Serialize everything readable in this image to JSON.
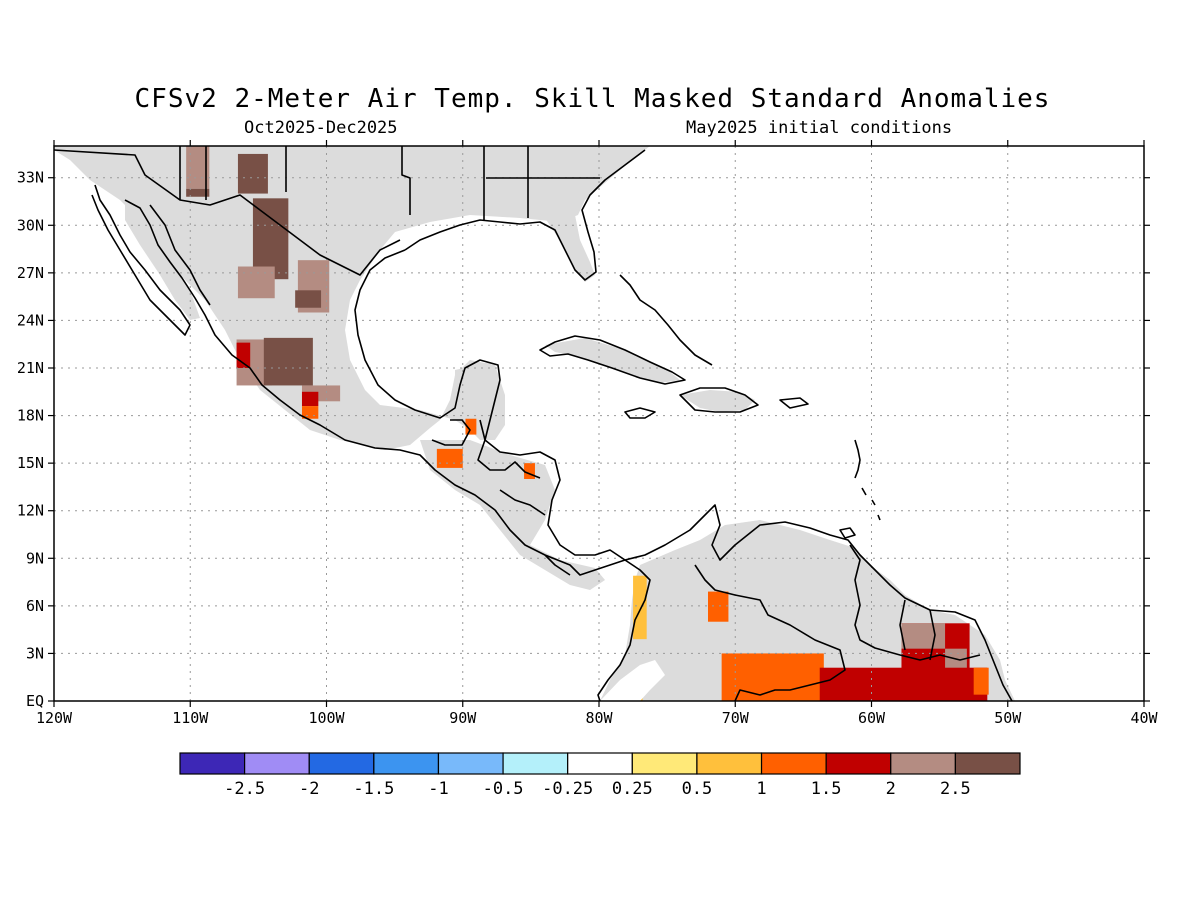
{
  "title": "CFSv2 2-Meter Air Temp. Skill Masked Standard Anomalies",
  "period": "Oct2025-Dec2025",
  "init": "May2025 initial conditions",
  "map": {
    "lon_range": [
      -120,
      -40
    ],
    "lat_range": [
      0,
      35
    ],
    "lon_ticks": [
      {
        "v": -120,
        "label": "120W"
      },
      {
        "v": -110,
        "label": "110W"
      },
      {
        "v": -100,
        "label": "100W"
      },
      {
        "v": -90,
        "label": "90W"
      },
      {
        "v": -80,
        "label": "80W"
      },
      {
        "v": -70,
        "label": "70W"
      },
      {
        "v": -60,
        "label": "60W"
      },
      {
        "v": -50,
        "label": "50W"
      },
      {
        "v": -40,
        "label": "40W"
      }
    ],
    "lat_ticks": [
      {
        "v": 0,
        "label": "EQ"
      },
      {
        "v": 3,
        "label": "3N"
      },
      {
        "v": 6,
        "label": "6N"
      },
      {
        "v": 9,
        "label": "9N"
      },
      {
        "v": 12,
        "label": "12N"
      },
      {
        "v": 15,
        "label": "15N"
      },
      {
        "v": 18,
        "label": "18N"
      },
      {
        "v": 21,
        "label": "21N"
      },
      {
        "v": 24,
        "label": "24N"
      },
      {
        "v": 27,
        "label": "27N"
      },
      {
        "v": 30,
        "label": "30N"
      },
      {
        "v": 33,
        "label": "33N"
      }
    ],
    "grid": true,
    "colors": {
      "land_no_skill": "#dcdcdc",
      "coast": "#000000"
    }
  },
  "colorbar": {
    "colors": [
      "#3d27b6",
      "#a08cf5",
      "#2369e3",
      "#3c94f0",
      "#78b9fa",
      "#b4f0fa",
      "#ffffff",
      "#ffe978",
      "#ffc03c",
      "#ff6000",
      "#c00000",
      "#b48c82",
      "#785046"
    ],
    "labels": [
      "-2.5",
      "-2",
      "-1.5",
      "-1",
      "-0.5",
      "-0.25",
      "0.25",
      "0.5",
      "1",
      "1.5",
      "2",
      "2.5"
    ]
  },
  "anomalies": [
    {
      "lon": [
        -110.3,
        -108.6
      ],
      "lat": [
        32.3,
        35
      ],
      "level": 2.5,
      "color": "#b48c82"
    },
    {
      "lon": [
        -110.3,
        -108.6
      ],
      "lat": [
        31.8,
        32.3
      ],
      "level": 3,
      "color": "#785046"
    },
    {
      "lon": [
        -106.5,
        -104.3
      ],
      "lat": [
        32,
        34.5
      ],
      "level": 3,
      "color": "#785046"
    },
    {
      "lon": [
        -105.4,
        -102.8
      ],
      "lat": [
        26.6,
        31.7
      ],
      "level": 3,
      "color": "#785046"
    },
    {
      "lon": [
        -106.5,
        -103.8
      ],
      "lat": [
        25.4,
        27.4
      ],
      "level": 2.5,
      "color": "#b48c82"
    },
    {
      "lon": [
        -102.1,
        -99.8
      ],
      "lat": [
        24.5,
        27.8
      ],
      "level": 2.5,
      "color": "#b48c82"
    },
    {
      "lon": [
        -102.3,
        -100.4
      ],
      "lat": [
        24.8,
        25.9
      ],
      "level": 3,
      "color": "#785046"
    },
    {
      "lon": [
        -106.6,
        -104.0
      ],
      "lat": [
        19.9,
        22.8
      ],
      "level": 2.5,
      "color": "#b48c82"
    },
    {
      "lon": [
        -104.6,
        -101.0
      ],
      "lat": [
        19.9,
        22.9
      ],
      "level": 3,
      "color": "#785046"
    },
    {
      "lon": [
        -106.6,
        -105.6
      ],
      "lat": [
        21.0,
        22.6
      ],
      "level": 2,
      "color": "#c00000"
    },
    {
      "lon": [
        -101.8,
        -99.0
      ],
      "lat": [
        18.9,
        19.9
      ],
      "level": 2.5,
      "color": "#b48c82"
    },
    {
      "lon": [
        -101.8,
        -100.6
      ],
      "lat": [
        18.6,
        19.5
      ],
      "level": 2,
      "color": "#c00000"
    },
    {
      "lon": [
        -101.8,
        -100.6
      ],
      "lat": [
        17.8,
        18.6
      ],
      "level": 1.5,
      "color": "#ff6000"
    },
    {
      "lon": [
        -91.9,
        -90.0
      ],
      "lat": [
        14.7,
        15.9
      ],
      "level": 1.5,
      "color": "#ff6000"
    },
    {
      "lon": [
        -89.8,
        -89.0
      ],
      "lat": [
        16.8,
        17.8
      ],
      "level": 1.5,
      "color": "#ff6000"
    },
    {
      "lon": [
        -85.5,
        -84.7
      ],
      "lat": [
        14.0,
        15.0
      ],
      "level": 1.5,
      "color": "#ff6000"
    },
    {
      "lon": [
        -77.5,
        -76.5
      ],
      "lat": [
        3.9,
        7.9
      ],
      "level": 0.75,
      "color": "#ffc03c"
    },
    {
      "lon": [
        -77.5,
        -76.8
      ],
      "lat": [
        0,
        1.0
      ],
      "level": 0.75,
      "color": "#ffc03c"
    },
    {
      "lon": [
        -72.0,
        -70.5
      ],
      "lat": [
        5.0,
        6.9
      ],
      "level": 1.5,
      "color": "#ff6000"
    },
    {
      "lon": [
        -71.0,
        -63.5
      ],
      "lat": [
        0,
        3.0
      ],
      "level": 1.5,
      "color": "#ff6000"
    },
    {
      "lon": [
        -63.8,
        -51.5
      ],
      "lat": [
        0,
        2.1
      ],
      "level": 2,
      "color": "#c00000"
    },
    {
      "lon": [
        -57.8,
        -52.8
      ],
      "lat": [
        1.5,
        4.9
      ],
      "level": 2,
      "color": "#c00000"
    },
    {
      "lon": [
        -57.8,
        -54.6
      ],
      "lat": [
        3.3,
        4.9
      ],
      "level": 2.5,
      "color": "#b48c82"
    },
    {
      "lon": [
        -54.6,
        -53.0
      ],
      "lat": [
        2.1,
        3.3
      ],
      "level": 2.5,
      "color": "#b48c82"
    },
    {
      "lon": [
        -52.5,
        -51.4
      ],
      "lat": [
        0.4,
        2.1
      ],
      "level": 1.5,
      "color": "#ff6000"
    }
  ]
}
